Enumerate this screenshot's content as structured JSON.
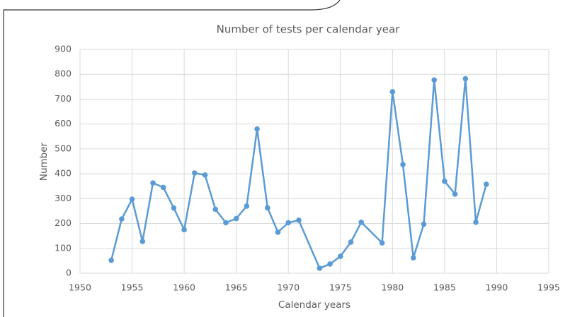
{
  "chart_data": {
    "type": "line",
    "title": "Number of tests per calendar year",
    "x_label": "Calendar years",
    "y_label": "Number",
    "x": [
      1953,
      1954,
      1955,
      1956,
      1957,
      1958,
      1959,
      1960,
      1961,
      1962,
      1963,
      1964,
      1965,
      1966,
      1967,
      1968,
      1969,
      1970,
      1971,
      1973,
      1974,
      1975,
      1976,
      1977,
      1979,
      1980,
      1981,
      1982,
      1983,
      1984,
      1985,
      1986,
      1987,
      1988,
      1989
    ],
    "series": [
      {
        "name": "Number",
        "color": "#5b9bd5",
        "values": [
          52,
          218,
          298,
          128,
          363,
          345,
          262,
          175,
          403,
          395,
          257,
          203,
          220,
          270,
          580,
          263,
          165,
          203,
          213,
          20,
          37,
          68,
          125,
          205,
          122,
          730,
          437,
          62,
          197,
          777,
          370,
          318,
          782,
          205,
          358
        ]
      }
    ],
    "xlim": [
      1950,
      1995
    ],
    "xticks": [
      1950,
      1955,
      1960,
      1965,
      1970,
      1975,
      1980,
      1985,
      1990,
      1995
    ],
    "ylim": [
      0,
      900
    ],
    "yticks": [
      0,
      100,
      200,
      300,
      400,
      500,
      600,
      700,
      800,
      900
    ],
    "grid": true
  }
}
